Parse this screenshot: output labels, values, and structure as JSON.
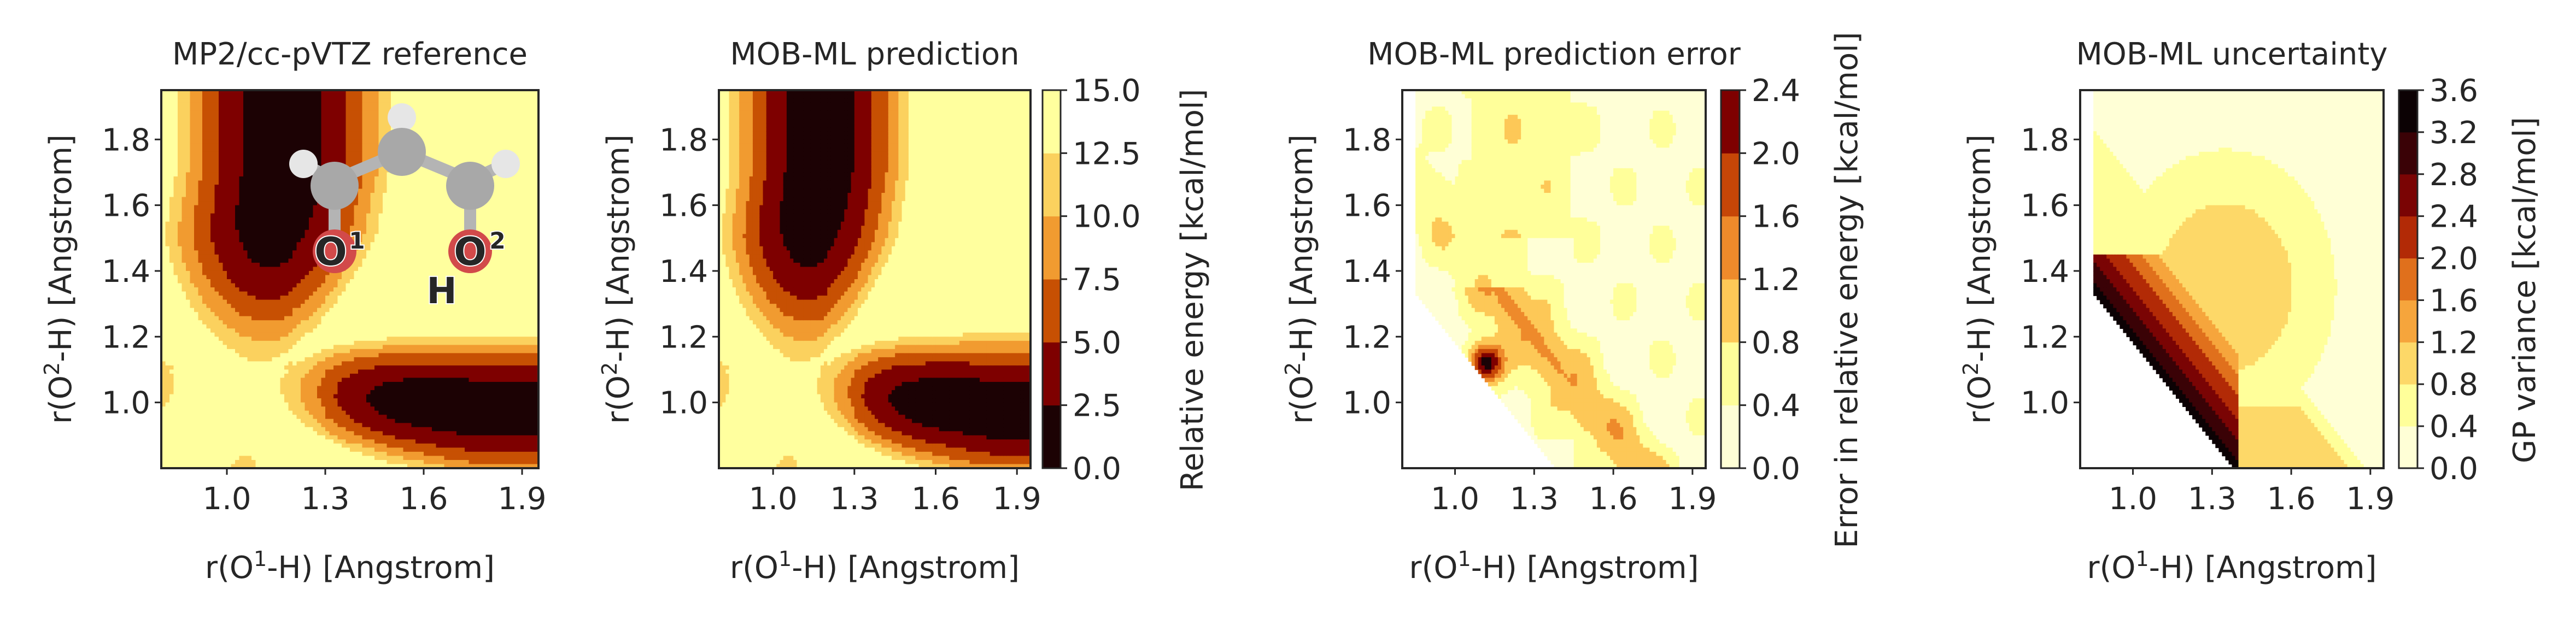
{
  "chart_data": [
    {
      "type": "contour",
      "title": "MP2/cc-pVTZ reference",
      "xlabel_parts": [
        "r(O",
        "1",
        "-H) [Angstrom]"
      ],
      "ylabel_parts": [
        "r(O",
        "2",
        "-H) [Angstrom]"
      ],
      "xlim": [
        0.8,
        1.95
      ],
      "ylim": [
        0.8,
        1.95
      ],
      "xticks": [
        "1.0",
        "1.3",
        "1.6",
        "1.9"
      ],
      "xtick_values": [
        1.0,
        1.3,
        1.6,
        1.9
      ],
      "yticks": [
        "1.0",
        "1.2",
        "1.4",
        "1.6",
        "1.8"
      ],
      "ytick_values": [
        1.0,
        1.2,
        1.4,
        1.6,
        1.8
      ],
      "surface": "energy",
      "levels_kcal_mol": [
        0,
        2.5,
        5.0,
        7.5,
        10.0,
        12.5,
        15.0
      ],
      "has_molecule_inset": true,
      "molecule_atom_labels": [
        "O",
        "1",
        "O",
        "2",
        "H"
      ]
    },
    {
      "type": "contour",
      "title": "MOB-ML prediction",
      "xlabel_parts": [
        "r(O",
        "1",
        "-H) [Angstrom]"
      ],
      "ylabel_parts": [
        "r(O",
        "2",
        "-H) [Angstrom]"
      ],
      "xlim": [
        0.8,
        1.95
      ],
      "ylim": [
        0.8,
        1.95
      ],
      "xticks": [
        "1.0",
        "1.3",
        "1.6",
        "1.9"
      ],
      "xtick_values": [
        1.0,
        1.3,
        1.6,
        1.9
      ],
      "yticks": [
        "1.0",
        "1.2",
        "1.4",
        "1.6",
        "1.8"
      ],
      "ytick_values": [
        1.0,
        1.2,
        1.4,
        1.6,
        1.8
      ],
      "surface": "energy",
      "colorbar": {
        "label": "Relative energy [kcal/mol]",
        "ticks": [
          "0.0",
          "2.5",
          "5.0",
          "7.5",
          "10.0",
          "12.5",
          "15.0"
        ],
        "range": [
          0,
          15
        ],
        "colors": [
          "#1c0204",
          "#7e0000",
          "#c75003",
          "#f19b30",
          "#fbd15e",
          "#ffff9e"
        ]
      }
    },
    {
      "type": "contour",
      "title": "MOB-ML prediction error",
      "xlabel_parts": [
        "r(O",
        "1",
        "-H) [Angstrom]"
      ],
      "ylabel_parts": [
        "r(O",
        "2",
        "-H) [Angstrom]"
      ],
      "xlim": [
        0.8,
        1.95
      ],
      "ylim": [
        0.8,
        1.95
      ],
      "xticks": [
        "1.0",
        "1.3",
        "1.6",
        "1.9"
      ],
      "xtick_values": [
        1.0,
        1.3,
        1.6,
        1.9
      ],
      "yticks": [
        "1.0",
        "1.2",
        "1.4",
        "1.6",
        "1.8"
      ],
      "ytick_values": [
        1.0,
        1.2,
        1.4,
        1.6,
        1.8
      ],
      "surface": "error",
      "colorbar": {
        "label": "Error in relative energy [kcal/mol]",
        "ticks": [
          "0.0",
          "0.4",
          "0.8",
          "1.2",
          "1.6",
          "2.0",
          "2.4"
        ],
        "range": [
          0,
          2.4
        ],
        "colors": [
          "#ffffd6",
          "#ffff9a",
          "#fdc857",
          "#ee8a2b",
          "#c64607",
          "#7e0000",
          "#1a0306"
        ]
      }
    },
    {
      "type": "contour",
      "title": "MOB-ML uncertainty",
      "xlabel_parts": [
        "r(O",
        "1",
        "-H) [Angstrom]"
      ],
      "ylabel_parts": [
        "r(O",
        "2",
        "-H) [Angstrom]"
      ],
      "xlim": [
        0.8,
        1.95
      ],
      "ylim": [
        0.8,
        1.95
      ],
      "xticks": [
        "1.0",
        "1.3",
        "1.6",
        "1.9"
      ],
      "xtick_values": [
        1.0,
        1.3,
        1.6,
        1.9
      ],
      "yticks": [
        "1.0",
        "1.2",
        "1.4",
        "1.6",
        "1.8"
      ],
      "ytick_values": [
        1.0,
        1.2,
        1.4,
        1.6,
        1.8
      ],
      "surface": "uncertainty",
      "colorbar": {
        "label": "GP variance [kcal/mol]",
        "ticks": [
          "0.0",
          "0.4",
          "0.8",
          "1.2",
          "1.6",
          "2.0",
          "2.4",
          "2.8",
          "3.2",
          "3.6"
        ],
        "range": [
          0,
          3.6
        ],
        "colors": [
          "#ffffd6",
          "#ffff9a",
          "#fdd868",
          "#f6a53c",
          "#e0701c",
          "#b22a06",
          "#7a0404",
          "#3a0206",
          "#0c0204"
        ]
      }
    }
  ],
  "colors": {
    "energy_levels": [
      "#1c0204",
      "#7e0000",
      "#c75003",
      "#f19b30",
      "#fbd15e",
      "#ffff9e"
    ],
    "error_levels": [
      "#ffffd6",
      "#ffff9a",
      "#fdc857",
      "#ee8a2b",
      "#c64607",
      "#7e0000",
      "#1a0306"
    ],
    "uncertainty_levels": [
      "#ffffd6",
      "#ffff9a",
      "#fdd868",
      "#f6a53c",
      "#e0701c",
      "#b22a06",
      "#7a0404",
      "#3a0206",
      "#0c0204"
    ]
  }
}
